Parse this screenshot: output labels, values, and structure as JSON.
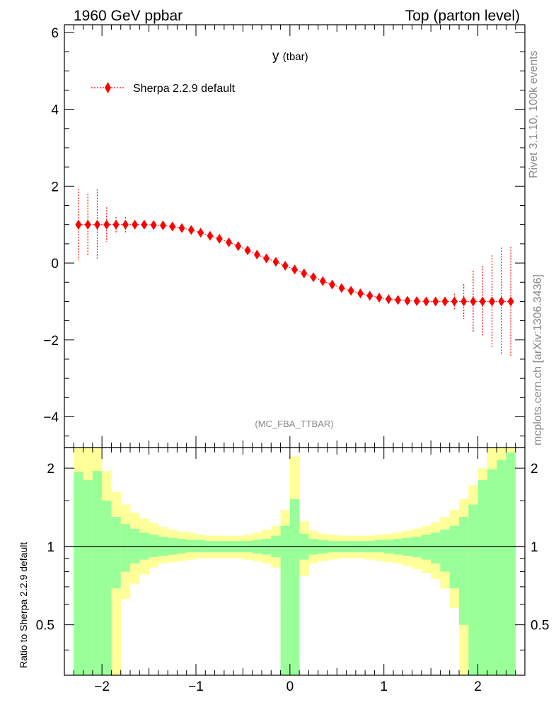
{
  "header": {
    "left": "1960 GeV ppbar",
    "right": "Top (parton level)"
  },
  "side": {
    "rivet": "Rivet 3.1.10,  100k events",
    "mcplots": "mcplots.cern.ch [arXiv:1306.3436]"
  },
  "colors": {
    "marker": "#ff0000",
    "band_inner": "#99ff99",
    "band_outer": "#ffff99",
    "axis": "#000000",
    "muted": "#888888"
  },
  "chart_data": [
    {
      "type": "scatter",
      "title": "y",
      "title_sub": "(tbar)",
      "analysis": "(MC_FBA_TTBAR)",
      "xlim": [
        -2.4,
        2.5
      ],
      "ylim": [
        -4.8,
        6.2
      ],
      "yticks": [
        "6",
        "4",
        "2",
        "0",
        "−2",
        "−4"
      ],
      "legend_position": "top-left",
      "series": [
        {
          "name": "Sherpa 2.2.9 default",
          "x": [
            -2.25,
            -2.15,
            -2.05,
            -1.95,
            -1.85,
            -1.75,
            -1.65,
            -1.55,
            -1.45,
            -1.35,
            -1.25,
            -1.15,
            -1.05,
            -0.95,
            -0.85,
            -0.75,
            -0.65,
            -0.55,
            -0.45,
            -0.35,
            -0.25,
            -0.15,
            -0.05,
            0.05,
            0.15,
            0.25,
            0.35,
            0.45,
            0.55,
            0.65,
            0.75,
            0.85,
            0.95,
            1.05,
            1.15,
            1.25,
            1.35,
            1.45,
            1.55,
            1.65,
            1.75,
            1.85,
            1.95,
            2.05,
            2.15,
            2.25,
            2.35
          ],
          "y": [
            1.0,
            1.0,
            1.0,
            1.0,
            1.0,
            1.0,
            1.0,
            1.0,
            0.99,
            0.98,
            0.95,
            0.91,
            0.86,
            0.79,
            0.71,
            0.63,
            0.54,
            0.44,
            0.33,
            0.22,
            0.12,
            0.03,
            -0.07,
            -0.17,
            -0.27,
            -0.37,
            -0.47,
            -0.56,
            -0.65,
            -0.72,
            -0.79,
            -0.85,
            -0.9,
            -0.94,
            -0.96,
            -0.98,
            -0.99,
            -1.0,
            -1.0,
            -1.0,
            -1.0,
            -1.0,
            -1.0,
            -1.0,
            -1.0,
            -1.0,
            -1.0
          ],
          "yerr": [
            0.93,
            0.8,
            0.92,
            0.45,
            0.2,
            0.2,
            0.08,
            0.06,
            0.05,
            0.05,
            0.05,
            0.05,
            0.05,
            0.05,
            0.05,
            0.05,
            0.05,
            0.05,
            0.05,
            0.05,
            0.05,
            0.05,
            0.05,
            0.05,
            0.05,
            0.05,
            0.05,
            0.05,
            0.05,
            0.05,
            0.05,
            0.05,
            0.05,
            0.05,
            0.05,
            0.05,
            0.05,
            0.06,
            0.08,
            0.12,
            0.2,
            0.45,
            0.8,
            0.92,
            1.2,
            1.4,
            1.42
          ]
        }
      ]
    },
    {
      "type": "area",
      "ylabel": "Ratio to Sherpa 2.2.9 default",
      "xlim": [
        -2.4,
        2.5
      ],
      "ylim": [
        0.32,
        2.4
      ],
      "y_scale": "log",
      "reference_line": 1,
      "xticks": [
        "−2",
        "−1",
        "0",
        "1",
        "2"
      ],
      "yticks": [
        "2",
        "1",
        "0.5"
      ],
      "bins_low": [
        -2.3,
        -2.2,
        -2.1,
        -2.0,
        -1.9,
        -1.8,
        -1.7,
        -1.6,
        -1.5,
        -1.4,
        -1.3,
        -1.2,
        -1.1,
        -1.0,
        -0.9,
        -0.8,
        -0.7,
        -0.6,
        -0.5,
        -0.4,
        -0.3,
        -0.2,
        -0.1,
        0.0,
        0.1,
        0.2,
        0.3,
        0.4,
        0.5,
        0.6,
        0.7,
        0.8,
        0.9,
        1.0,
        1.1,
        1.2,
        1.3,
        1.4,
        1.5,
        1.6,
        1.7,
        1.8,
        1.9,
        2.0,
        2.1,
        2.2,
        2.3
      ],
      "bin_width": 0.1,
      "inner_band": {
        "upper": [
          1.93,
          1.8,
          1.95,
          1.5,
          1.3,
          1.22,
          1.17,
          1.13,
          1.11,
          1.09,
          1.08,
          1.07,
          1.06,
          1.06,
          1.05,
          1.05,
          1.05,
          1.05,
          1.05,
          1.06,
          1.07,
          1.1,
          1.2,
          1.52,
          1.12,
          1.07,
          1.06,
          1.05,
          1.05,
          1.05,
          1.05,
          1.05,
          1.06,
          1.06,
          1.07,
          1.08,
          1.09,
          1.11,
          1.13,
          1.16,
          1.2,
          1.3,
          1.45,
          1.8,
          1.98,
          2.15,
          2.3
        ],
        "lower": [
          0.3,
          0.3,
          0.3,
          0.3,
          0.69,
          0.8,
          0.86,
          0.89,
          0.91,
          0.92,
          0.93,
          0.94,
          0.95,
          0.95,
          0.95,
          0.95,
          0.95,
          0.95,
          0.95,
          0.94,
          0.93,
          0.91,
          0.3,
          0.3,
          0.89,
          0.93,
          0.94,
          0.95,
          0.95,
          0.95,
          0.95,
          0.95,
          0.95,
          0.94,
          0.93,
          0.92,
          0.91,
          0.89,
          0.86,
          0.8,
          0.69,
          0.5,
          0.3,
          0.3,
          0.3,
          0.3,
          0.3
        ]
      },
      "outer_band": {
        "upper": [
          2.4,
          2.4,
          2.4,
          1.95,
          1.62,
          1.45,
          1.35,
          1.28,
          1.23,
          1.19,
          1.16,
          1.14,
          1.13,
          1.11,
          1.1,
          1.1,
          1.1,
          1.1,
          1.11,
          1.13,
          1.16,
          1.2,
          1.38,
          2.22,
          1.25,
          1.15,
          1.12,
          1.11,
          1.1,
          1.1,
          1.1,
          1.1,
          1.11,
          1.12,
          1.13,
          1.15,
          1.17,
          1.2,
          1.24,
          1.3,
          1.38,
          1.52,
          1.72,
          2.0,
          2.4,
          2.4,
          2.4
        ],
        "lower": [
          0.3,
          0.3,
          0.3,
          0.3,
          0.3,
          0.63,
          0.72,
          0.78,
          0.83,
          0.86,
          0.87,
          0.88,
          0.89,
          0.9,
          0.9,
          0.9,
          0.9,
          0.9,
          0.89,
          0.88,
          0.86,
          0.83,
          0.58,
          0.3,
          0.77,
          0.86,
          0.88,
          0.89,
          0.9,
          0.9,
          0.9,
          0.89,
          0.88,
          0.87,
          0.86,
          0.84,
          0.82,
          0.79,
          0.75,
          0.69,
          0.58,
          0.3,
          0.3,
          0.3,
          0.3,
          0.3,
          0.3
        ]
      }
    }
  ]
}
